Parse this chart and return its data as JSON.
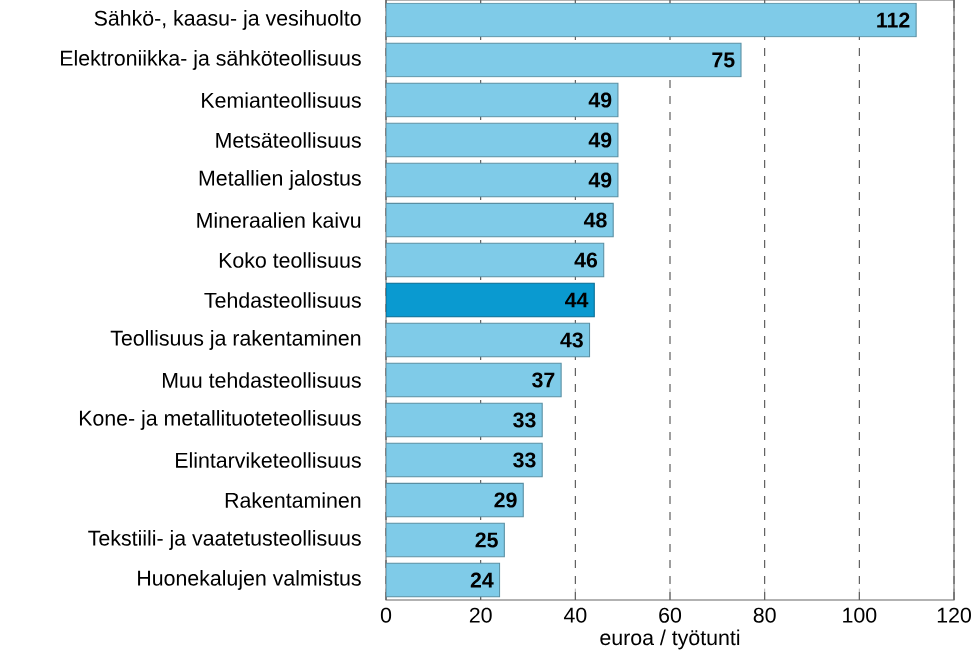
{
  "chart_data": {
    "type": "bar",
    "orientation": "horizontal",
    "xlabel": "euroa / työtunti",
    "categories": [
      "Sähkö-, kaasu- ja vesihuolto",
      "Elektroniikka- ja sähköteollisuus",
      "Kemianteollisuus",
      "Metsäteollisuus",
      "Metallien jalostus",
      "Mineraalien kaivu",
      "Koko teollisuus",
      "Tehdasteollisuus",
      "Teollisuus ja rakentaminen",
      "Muu tehdasteollisuus",
      "Kone- ja metallituoteteollisuus",
      "Elintarviketeollisuus",
      "Rakentaminen",
      "Tekstiili- ja vaatetusteollisuus",
      "Huonekalujen valmistus"
    ],
    "values": [
      112,
      75,
      49,
      49,
      49,
      48,
      46,
      44,
      43,
      37,
      33,
      33,
      29,
      25,
      24
    ],
    "colors": [
      "#7fcbe8",
      "#7fcbe8",
      "#7fcbe8",
      "#7fcbe8",
      "#7fcbe8",
      "#7fcbe8",
      "#7fcbe8",
      "#0a9ad0",
      "#7fcbe8",
      "#7fcbe8",
      "#7fcbe8",
      "#7fcbe8",
      "#7fcbe8",
      "#7fcbe8",
      "#7fcbe8"
    ],
    "xlim": [
      0,
      120
    ],
    "xticks": [
      0,
      20,
      40,
      60,
      80,
      100,
      120
    ],
    "grid": "x",
    "data_labels": true
  }
}
